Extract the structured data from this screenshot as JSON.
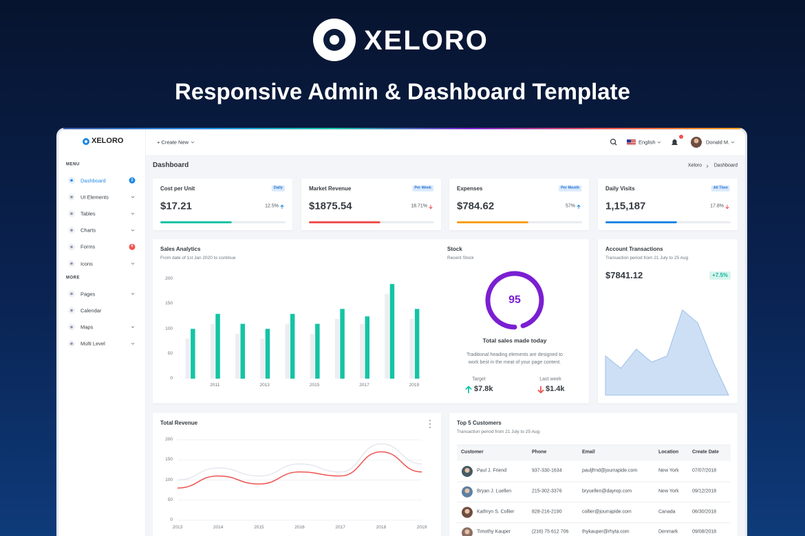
{
  "hero": {
    "brand": "XELORO",
    "tagline": "Responsive Admin & Dashboard Template"
  },
  "sidebar": {
    "brand": "XELORO",
    "sections": [
      {
        "heading": "MENU",
        "items": [
          {
            "label": "Dashboard",
            "badge": "2",
            "badge_color": "#1e88e5",
            "active": true
          },
          {
            "label": "UI Elements",
            "submenu": true
          },
          {
            "label": "Tables",
            "submenu": true
          },
          {
            "label": "Charts",
            "submenu": true
          },
          {
            "label": "Forms",
            "badge": "6",
            "badge_color": "#ef5350"
          },
          {
            "label": "Icons",
            "submenu": true
          }
        ]
      },
      {
        "heading": "MORE",
        "items": [
          {
            "label": "Pages",
            "submenu": true
          },
          {
            "label": "Calendar"
          },
          {
            "label": "Maps",
            "submenu": true
          },
          {
            "label": "Multi Level",
            "submenu": true
          }
        ]
      }
    ]
  },
  "topbar": {
    "create": "+ Create New",
    "language": "English",
    "user": "Donald M."
  },
  "page": {
    "title": "Dashboard",
    "breadcrumb": [
      "Xeloro",
      "Dashboard"
    ]
  },
  "stats": [
    {
      "title": "Cost per Unit",
      "badge": "Daily",
      "value": "$17.21",
      "change": "12.5%",
      "trend": "up",
      "color": "#14c4a5",
      "progress": 57,
      "xlim": [
        0,
        100
      ]
    },
    {
      "title": "Market Revenue",
      "badge": "Per Week",
      "value": "$1875.54",
      "change": "18.71%",
      "trend": "down",
      "color": "#ef5350",
      "progress": 57,
      "xlim": [
        0,
        100
      ]
    },
    {
      "title": "Expenses",
      "badge": "Per Month",
      "value": "$784.62",
      "change": "57%",
      "trend": "up",
      "color": "#f5a01a",
      "progress": 57,
      "xlim": [
        0,
        100
      ]
    },
    {
      "title": "Daily Visits",
      "badge": "All Time",
      "value": "1,15,187",
      "change": "17.8%",
      "trend": "down",
      "color": "#1e88e5",
      "progress": 57,
      "xlim": [
        0,
        100
      ]
    }
  ],
  "sales": {
    "type": "bar",
    "title": "Sales Analytics",
    "subtitle": "From date of 1st Jan 2020 to continue",
    "categories": [
      null,
      "2011",
      null,
      "2013",
      null,
      "2015",
      null,
      "2017",
      null,
      "2019"
    ],
    "series": [
      {
        "color": "#eceef2",
        "values": [
          80,
          110,
          90,
          80,
          110,
          90,
          120,
          110,
          170,
          120
        ]
      },
      {
        "color": "#14c4a5",
        "values": [
          100,
          130,
          110,
          100,
          130,
          110,
          140,
          125,
          190,
          140
        ]
      }
    ],
    "ylim": [
      0,
      200
    ],
    "yticks": [
      0,
      50,
      100,
      150,
      200
    ],
    "grid": false
  },
  "stock": {
    "type": "gauge",
    "title": "Stock",
    "subtitle": "Recent Stock",
    "value": 95,
    "ylim": [
      0,
      100
    ],
    "color": "#7a1fd2",
    "heading": "Total sales made today",
    "text": "Traditional heading elements are designed to work best in the meat of your page content.",
    "target": {
      "label": "Target",
      "value": "$7.8k"
    },
    "last_week": {
      "label": "Last week",
      "value": "$1.4k"
    }
  },
  "transactions": {
    "type": "area",
    "title": "Account Transactions",
    "subtitle": "Transaction period from 21 July to 25 Aug",
    "amount": "$7841.12",
    "change": "+7.5%",
    "values": [
      57,
      39,
      67,
      48,
      57,
      124,
      105,
      48,
      0
    ],
    "ylim": [
      0,
      135
    ],
    "color": "#cddff4"
  },
  "revenue": {
    "type": "line",
    "title": "Total Revenue",
    "x": [
      2013,
      2014,
      2015,
      2016,
      2017,
      2018,
      2019
    ],
    "series": [
      {
        "color": "#e6e7ee",
        "values": [
          100,
          130,
          110,
          140,
          120,
          190,
          140
        ]
      },
      {
        "color": "#ef5350",
        "values": [
          80,
          110,
          90,
          120,
          110,
          170,
          120
        ]
      }
    ],
    "ylim": [
      0,
      200
    ],
    "yticks": [
      0,
      50,
      100,
      150,
      200
    ],
    "grid": true
  },
  "customers": {
    "title": "Top 5 Customers",
    "subtitle": "Transaction period from 21 July to 25 Aug",
    "columns": [
      "Customer",
      "Phone",
      "Email",
      "Location",
      "Create Date"
    ],
    "rows": [
      [
        "Paul J. Friend",
        "937-330-1634",
        "pauljfrnd@jourrapide.com",
        "New York",
        "07/07/2018"
      ],
      [
        "Bryan J. Luellen",
        "215-302-3376",
        "bryuellen@dayrep.com",
        "New York",
        "09/12/2018"
      ],
      [
        "Kathryn S. Collier",
        "828-216-2190",
        "collier@jourrapide.com",
        "Canada",
        "06/30/2018"
      ],
      [
        "Timothy Kauper",
        "(216) 75 612 706",
        "thykauper@rhyta.com",
        "Denmark",
        "09/08/2018"
      ]
    ]
  }
}
